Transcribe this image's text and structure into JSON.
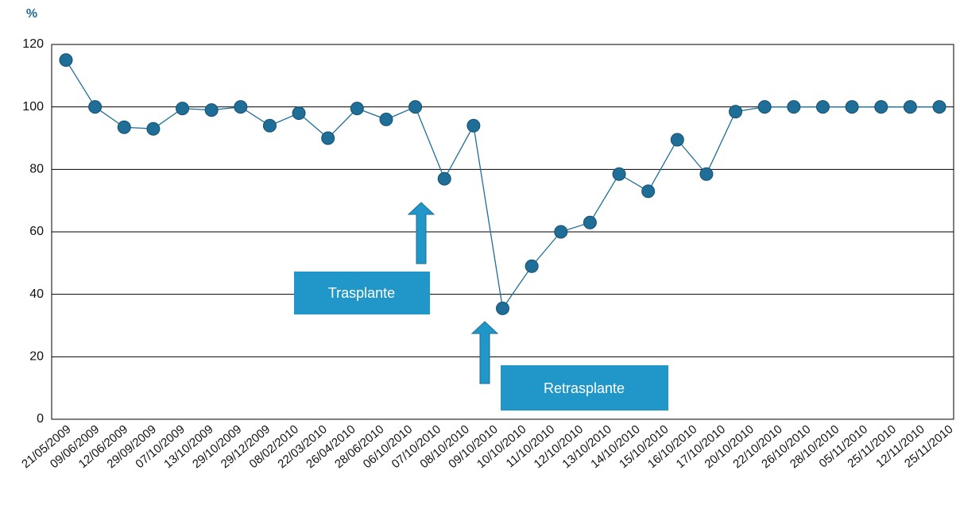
{
  "chart_data": {
    "type": "line",
    "y_unit_label": "%",
    "categories": [
      "21/05/2009",
      "09/06/2009",
      "12/06/2009",
      "29/09/2009",
      "07/10/2009",
      "13/10/2009",
      "29/10/2009",
      "29/12/2009",
      "08/02/2010",
      "22/03/2010",
      "26/04/2010",
      "28/06/2010",
      "06/10/2010",
      "07/10/2010",
      "08/10/2010",
      "09/10/2010",
      "10/10/2010",
      "11/10/2010",
      "12/10/2010",
      "13/10/2010",
      "14/10/2010",
      "15/10/2010",
      "16/10/2010",
      "17/10/2010",
      "20/10/2010",
      "22/10/2010",
      "26/10/2010",
      "28/10/2010",
      "05/11/2010",
      "25/11/2010",
      "12/11/2010",
      "25/11/2010"
    ],
    "series": [
      {
        "color": "#1f6e98",
        "values": [
          115,
          100,
          93.5,
          93,
          99.5,
          99,
          100,
          94,
          98,
          90,
          99.5,
          96,
          100,
          77,
          94,
          35.5,
          49,
          60,
          63,
          78.5,
          73,
          89.5,
          78.5,
          98.5,
          100,
          100,
          100,
          100,
          100,
          100,
          100,
          null
        ]
      }
    ],
    "ylim": [
      0,
      120
    ],
    "yticks": [
      0,
      20,
      40,
      60,
      80,
      100,
      120
    ],
    "grid": true,
    "annotations": [
      {
        "text": "Trasplante"
      },
      {
        "text": "Retrasplante"
      }
    ]
  }
}
